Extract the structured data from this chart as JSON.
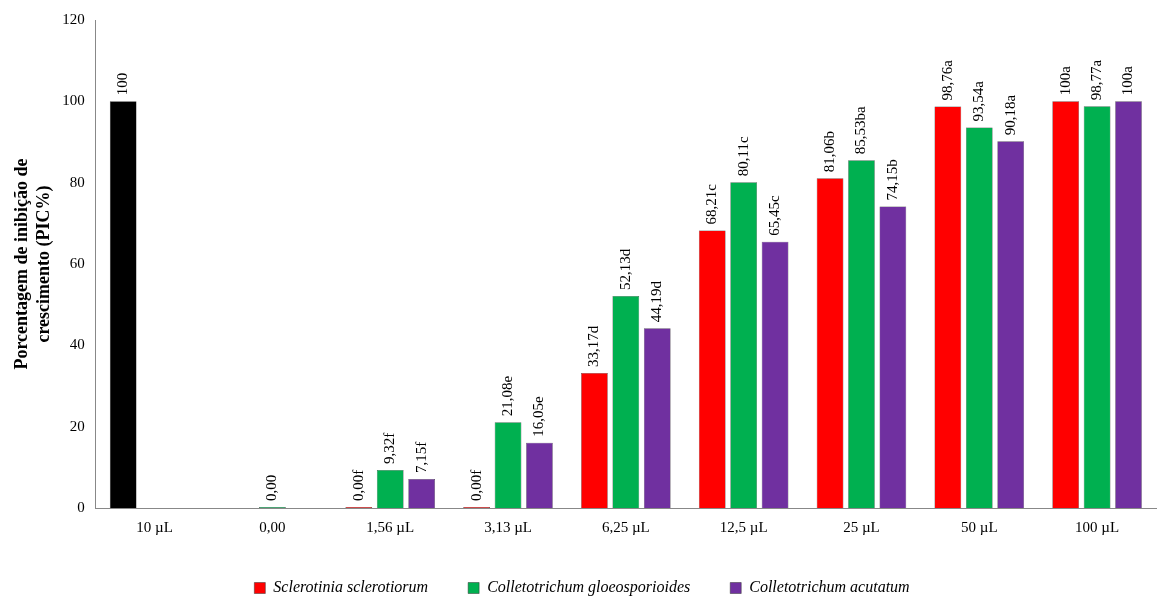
{
  "chart_data": {
    "type": "bar",
    "ylabel": "Porcentagem de inibição de\ncrescimento (PIC%)",
    "categories": [
      "10 µL",
      "0,00",
      "1,56 µL",
      "3,13 µL",
      "6,25 µL",
      "12,5 µL",
      "25 µL",
      "50 µL",
      "100 µL"
    ],
    "ylim": [
      0,
      120
    ],
    "yticks": [
      0,
      20,
      40,
      60,
      80,
      100,
      120
    ],
    "grid": false,
    "legend": "bottom",
    "series": [
      {
        "name": "Sclerotinia sclerotiorum",
        "color": "#ff0000",
        "colors": [
          "#000000",
          "#ff0000",
          "#ff0000",
          "#ff0000",
          "#ff0000",
          "#ff0000",
          "#ff0000",
          "#ff0000",
          "#ff0000"
        ],
        "values": [
          100,
          null,
          0,
          0,
          33.17,
          68.21,
          81.06,
          98.76,
          100
        ],
        "value_labels": [
          "100",
          null,
          "0,00f",
          "0,00f",
          "33,17d",
          "68,21c",
          "81,06b",
          "98,76a",
          "100a"
        ]
      },
      {
        "name": "Colletotrichum gloeosporioides",
        "color": "#00b050",
        "values": [
          null,
          0,
          9.32,
          21.08,
          52.13,
          80.11,
          85.53,
          93.54,
          98.77
        ],
        "value_labels": [
          null,
          "0,00",
          "9,32f",
          "21,08e",
          "52,13d",
          "80,11c",
          "85,53ba",
          "93,54a",
          "98,77a"
        ]
      },
      {
        "name": "Colletotrichum acutatum",
        "color": "#7030a0",
        "values": [
          null,
          null,
          7.15,
          16.05,
          44.19,
          65.45,
          74.15,
          90.18,
          100
        ],
        "value_labels": [
          null,
          null,
          "7,15f",
          "16,05e",
          "44,19d",
          "65,45c",
          "74,15b",
          "90,18a",
          "100a"
        ]
      }
    ]
  }
}
